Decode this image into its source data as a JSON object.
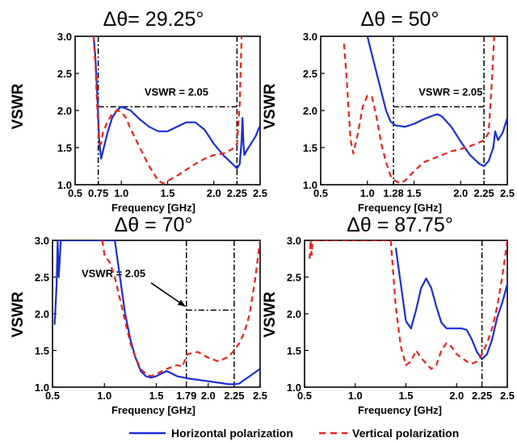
{
  "figure": {
    "legend": [
      {
        "name": "Horizontal polarization",
        "color": "#1a2fd6",
        "style": "solid"
      },
      {
        "name": "Vertical polarization",
        "color": "#e8221c",
        "style": "dashed"
      }
    ]
  },
  "chart_data": [
    {
      "type": "line",
      "title": "Δθ= 29.25°",
      "xlabel": "Frequency [GHz]",
      "ylabel": "VSWR",
      "xlim": [
        0.5,
        2.5
      ],
      "ylim": [
        1.0,
        3.0
      ],
      "xticks": [
        "0.5",
        "0.75",
        "1.0",
        "1.5",
        "2.0",
        "2.25",
        "2.5"
      ],
      "yticks": [
        "1.0",
        "1.5",
        "2.0",
        "2.5",
        "3.0"
      ],
      "vlines": [
        0.75,
        2.25
      ],
      "hline": {
        "y": 2.05,
        "from": 0.75,
        "to": 2.25
      },
      "annotation": {
        "text": "VSWR = 2.05",
        "x": 1.25,
        "y": 2.2
      },
      "series": [
        {
          "name": "Horizontal polarization",
          "x": [
            0.7,
            0.72,
            0.74,
            0.76,
            0.78,
            0.8,
            0.85,
            0.9,
            0.95,
            1.0,
            1.1,
            1.2,
            1.3,
            1.4,
            1.5,
            1.6,
            1.7,
            1.8,
            1.9,
            2.0,
            2.1,
            2.2,
            2.25,
            2.28,
            2.3,
            2.31,
            2.32,
            2.33,
            2.35,
            2.4,
            2.45,
            2.5
          ],
          "y": [
            3.0,
            2.7,
            2.2,
            1.6,
            1.35,
            1.45,
            1.7,
            1.9,
            2.0,
            2.05,
            2.0,
            1.88,
            1.78,
            1.72,
            1.72,
            1.78,
            1.84,
            1.84,
            1.74,
            1.55,
            1.4,
            1.28,
            1.22,
            1.28,
            1.6,
            1.9,
            1.55,
            1.4,
            1.45,
            1.55,
            1.65,
            1.8
          ]
        },
        {
          "name": "Vertical polarization",
          "x": [
            0.7,
            0.72,
            0.74,
            0.76,
            0.78,
            0.8,
            0.85,
            0.9,
            0.95,
            1.0,
            1.05,
            1.1,
            1.2,
            1.3,
            1.4,
            1.45,
            1.5,
            1.6,
            1.7,
            1.8,
            1.9,
            2.0,
            2.1,
            2.2,
            2.25,
            2.28,
            2.3
          ],
          "y": [
            3.0,
            2.6,
            2.0,
            1.55,
            1.55,
            1.7,
            1.85,
            1.95,
            2.0,
            1.98,
            1.9,
            1.75,
            1.5,
            1.25,
            1.05,
            1.02,
            1.05,
            1.12,
            1.2,
            1.28,
            1.35,
            1.4,
            1.42,
            1.48,
            1.55,
            2.1,
            3.0
          ]
        }
      ]
    },
    {
      "type": "line",
      "title": "Δθ = 50°",
      "xlabel": "Frequency [GHz]",
      "ylabel": "VSWR",
      "xlim": [
        0.5,
        2.5
      ],
      "ylim": [
        1.0,
        3.0
      ],
      "xticks": [
        "0.5",
        "1.0",
        "1.28",
        "1.5",
        "2.0",
        "2.25",
        "2.5"
      ],
      "yticks": [
        "1.0",
        "1.5",
        "2.0",
        "2.5",
        "3.0"
      ],
      "vlines": [
        1.28,
        2.25
      ],
      "hline": {
        "y": 2.05,
        "from": 1.28,
        "to": 2.25
      },
      "annotation": {
        "text": "VSWR = 2.05",
        "x": 1.55,
        "y": 2.2
      },
      "series": [
        {
          "name": "Horizontal polarization",
          "x": [
            1.0,
            1.05,
            1.1,
            1.15,
            1.2,
            1.25,
            1.3,
            1.4,
            1.5,
            1.6,
            1.7,
            1.75,
            1.8,
            1.9,
            2.0,
            2.1,
            2.2,
            2.25,
            2.3,
            2.35,
            2.37,
            2.4,
            2.45,
            2.5
          ],
          "y": [
            3.0,
            2.75,
            2.5,
            2.25,
            2.0,
            1.85,
            1.8,
            1.78,
            1.82,
            1.88,
            1.93,
            1.95,
            1.92,
            1.78,
            1.58,
            1.4,
            1.28,
            1.25,
            1.32,
            1.5,
            1.72,
            1.6,
            1.7,
            1.9
          ]
        },
        {
          "name": "Vertical polarization",
          "x": [
            0.75,
            0.78,
            0.8,
            0.82,
            0.85,
            0.9,
            0.95,
            1.0,
            1.05,
            1.1,
            1.15,
            1.2,
            1.25,
            1.3,
            1.35,
            1.4,
            1.5,
            1.6,
            1.7,
            1.8,
            1.9,
            2.0,
            2.1,
            2.2,
            2.25,
            2.3,
            2.33,
            2.36
          ],
          "y": [
            2.9,
            2.4,
            2.0,
            1.6,
            1.42,
            1.7,
            2.05,
            2.2,
            2.18,
            1.9,
            1.55,
            1.3,
            1.12,
            1.05,
            1.02,
            1.05,
            1.18,
            1.3,
            1.35,
            1.4,
            1.45,
            1.48,
            1.52,
            1.57,
            1.6,
            1.7,
            2.3,
            3.0
          ]
        }
      ]
    },
    {
      "type": "line",
      "title": "Δθ = 70°",
      "xlabel": "Frequency [GHz]",
      "ylabel": "VSWR",
      "xlim": [
        0.5,
        2.5
      ],
      "ylim": [
        1.0,
        3.0
      ],
      "xticks": [
        "0.5",
        "1.0",
        "1.5",
        "1.79",
        "2.0",
        "2.25",
        "2.5"
      ],
      "yticks": [
        "1.0",
        "1.5",
        "2.0",
        "2.5",
        "3.0"
      ],
      "vlines": [
        1.79,
        2.25
      ],
      "hline": {
        "y": 2.05,
        "from": 1.79,
        "to": 2.25
      },
      "annotation": {
        "text": "VSWR = 2.05",
        "x": 0.78,
        "y": 2.5
      },
      "arrow": {
        "from": [
          1.45,
          2.42
        ],
        "to": [
          1.78,
          2.1
        ]
      },
      "series": [
        {
          "name": "Horizontal polarization",
          "x": [
            0.52,
            0.54,
            0.55,
            0.56,
            0.58,
            1.1,
            1.15,
            1.2,
            1.25,
            1.3,
            1.35,
            1.4,
            1.45,
            1.5,
            1.6,
            1.7,
            1.8,
            1.9,
            2.0,
            2.1,
            2.2,
            2.25,
            2.3,
            2.4,
            2.5
          ],
          "y": [
            1.85,
            2.4,
            3.0,
            2.5,
            3.0,
            3.0,
            2.5,
            2.0,
            1.65,
            1.4,
            1.22,
            1.15,
            1.13,
            1.15,
            1.22,
            1.15,
            1.12,
            1.1,
            1.08,
            1.06,
            1.04,
            1.04,
            1.05,
            1.15,
            1.25
          ]
        },
        {
          "name": "Vertical polarization",
          "x": [
            0.98,
            1.0,
            1.05,
            1.1,
            1.15,
            1.2,
            1.25,
            1.3,
            1.35,
            1.4,
            1.45,
            1.5,
            1.6,
            1.7,
            1.75,
            1.8,
            1.9,
            2.0,
            2.1,
            2.2,
            2.25,
            2.3,
            2.35,
            2.4,
            2.45,
            2.5
          ],
          "y": [
            3.0,
            2.8,
            2.7,
            2.5,
            2.2,
            1.9,
            1.6,
            1.4,
            1.25,
            1.18,
            1.15,
            1.18,
            1.25,
            1.3,
            1.28,
            1.45,
            1.48,
            1.4,
            1.35,
            1.42,
            1.5,
            1.6,
            1.75,
            2.0,
            2.45,
            3.0
          ]
        }
      ]
    },
    {
      "type": "line",
      "title": "Δθ = 87.75°",
      "xlabel": "Frequency [GHz]",
      "ylabel": "VSWR",
      "xlim": [
        0.5,
        2.5
      ],
      "ylim": [
        1.0,
        3.0
      ],
      "xticks": [
        "0.5",
        "1.0",
        "1.5",
        "2.0",
        "2.25",
        "2.5"
      ],
      "yticks": [
        "1.0",
        "1.5",
        "2.0",
        "2.5",
        "3.0"
      ],
      "vlines": [
        2.25
      ],
      "series": [
        {
          "name": "Horizontal polarization",
          "x": [
            1.4,
            1.45,
            1.5,
            1.55,
            1.6,
            1.65,
            1.7,
            1.75,
            1.8,
            1.85,
            1.9,
            1.95,
            2.0,
            2.05,
            2.1,
            2.15,
            2.2,
            2.25,
            2.3,
            2.35,
            2.4,
            2.45,
            2.5
          ],
          "y": [
            2.9,
            2.4,
            1.9,
            1.8,
            2.05,
            2.35,
            2.48,
            2.35,
            2.1,
            1.88,
            1.8,
            1.8,
            1.8,
            1.8,
            1.78,
            1.65,
            1.48,
            1.38,
            1.45,
            1.65,
            1.95,
            2.15,
            2.4
          ]
        },
        {
          "name": "Vertical polarization",
          "x": [
            0.55,
            0.56,
            0.57,
            0.58,
            1.35,
            1.4,
            1.45,
            1.5,
            1.55,
            1.6,
            1.65,
            1.7,
            1.75,
            1.8,
            1.85,
            1.9,
            1.95,
            2.0,
            2.05,
            2.1,
            2.15,
            2.2,
            2.25,
            2.3,
            2.35,
            2.4,
            2.45,
            2.5
          ],
          "y": [
            2.75,
            3.0,
            2.8,
            3.0,
            3.0,
            2.1,
            1.55,
            1.3,
            1.35,
            1.5,
            1.4,
            1.32,
            1.25,
            1.3,
            1.5,
            1.6,
            1.55,
            1.45,
            1.4,
            1.35,
            1.32,
            1.35,
            1.45,
            1.6,
            1.8,
            2.1,
            2.5,
            3.0
          ]
        }
      ]
    }
  ]
}
